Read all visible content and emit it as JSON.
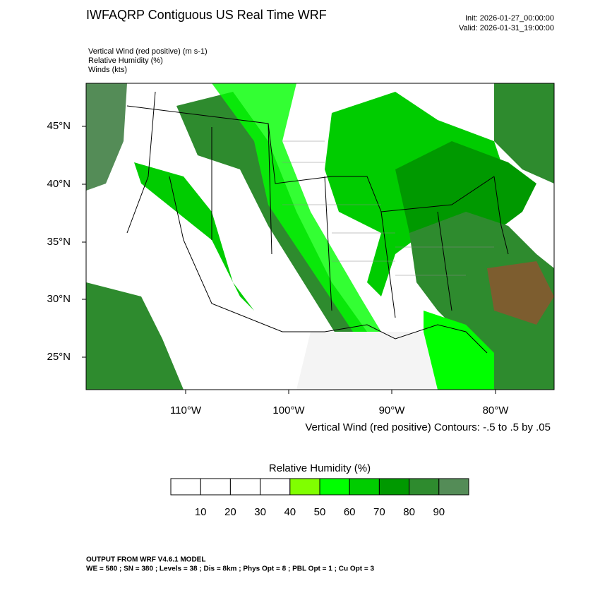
{
  "header": {
    "title": "IWFAQRP Contiguous US Real Time WRF",
    "init": "Init: 2026-01-27_00:00:00",
    "valid": "Valid: 2026-01-31_19:00:00",
    "fields": [
      "Vertical Wind (red positive)   (m s-1)",
      "Relative Humidity   (%)",
      "Winds   (kts)"
    ]
  },
  "map": {
    "lat_labels": [
      "45°N",
      "40°N",
      "35°N",
      "30°N",
      "25°N"
    ],
    "lon_labels": [
      "110°W",
      "100°W",
      "90°W",
      "80°W"
    ],
    "contour_caption": "Vertical Wind (red positive) Contours: -.5 to .5 by .05"
  },
  "colorbar": {
    "title": "Relative Humidity  (%)",
    "labels": [
      10,
      20,
      30,
      40,
      50,
      60,
      70,
      80,
      90
    ],
    "colors": [
      "#ffffff",
      "#ffffff",
      "#ffffff",
      "#ffffff",
      "#80ff00",
      "#00ff00",
      "#00cc00",
      "#009900",
      "#2e8b2e",
      "#548c57"
    ]
  },
  "footer": {
    "line1": "OUTPUT FROM WRF V4.6.1 MODEL",
    "line2": "WE = 580 ; SN = 380 ; Levels = 38 ; Dis = 8km ; Phys Opt = 8 ; PBL Opt = 1 ; Cu Opt = 3"
  }
}
